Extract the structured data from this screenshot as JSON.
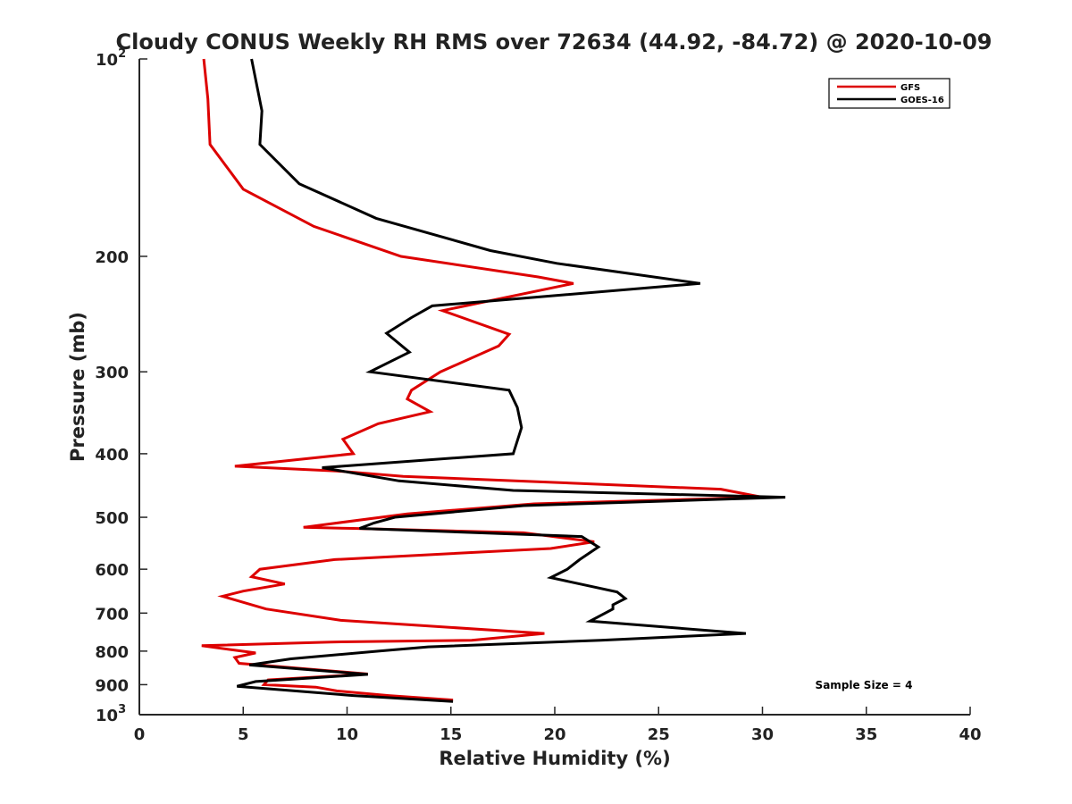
{
  "chart_data": {
    "type": "line",
    "title": "Cloudy CONUS Weekly RH RMS over 72634 (44.92, -84.72) @ 2020-10-09",
    "xlabel": "Relative Humidity (%)",
    "ylabel": "Pressure (mb)",
    "xlim": [
      0,
      40
    ],
    "ylim": [
      100,
      1000
    ],
    "yscale": "log",
    "y_reversed": true,
    "x_ticks": [
      {
        "value": 0,
        "label": "0"
      },
      {
        "value": 5,
        "label": "5"
      },
      {
        "value": 10,
        "label": "10"
      },
      {
        "value": 15,
        "label": "15"
      },
      {
        "value": 20,
        "label": "20"
      },
      {
        "value": 25,
        "label": "25"
      },
      {
        "value": 30,
        "label": "30"
      },
      {
        "value": 35,
        "label": "35"
      },
      {
        "value": 40,
        "label": "40"
      }
    ],
    "y_ticks": [
      {
        "value": 100,
        "label": "10",
        "sup": "2"
      },
      {
        "value": 200,
        "label": "200",
        "sup": ""
      },
      {
        "value": 300,
        "label": "300",
        "sup": ""
      },
      {
        "value": 400,
        "label": "400",
        "sup": ""
      },
      {
        "value": 500,
        "label": "500",
        "sup": ""
      },
      {
        "value": 600,
        "label": "600",
        "sup": ""
      },
      {
        "value": 700,
        "label": "700",
        "sup": ""
      },
      {
        "value": 800,
        "label": "800",
        "sup": ""
      },
      {
        "value": 900,
        "label": "900",
        "sup": ""
      },
      {
        "value": 1000,
        "label": "10",
        "sup": "3"
      }
    ],
    "grid": false,
    "legend_position": "top-right",
    "annotation": "Sample Size = 4",
    "series": [
      {
        "name": "GFS",
        "color": "#dd0000",
        "points": [
          [
            3.1,
            100
          ],
          [
            3.3,
            115
          ],
          [
            3.4,
            135
          ],
          [
            5.0,
            158
          ],
          [
            8.4,
            180
          ],
          [
            12.6,
            200
          ],
          [
            19.2,
            215
          ],
          [
            20.9,
            220
          ],
          [
            14.6,
            242
          ],
          [
            17.8,
            263
          ],
          [
            17.3,
            274
          ],
          [
            14.5,
            300
          ],
          [
            13.1,
            320
          ],
          [
            12.9,
            330
          ],
          [
            14.0,
            345
          ],
          [
            11.5,
            360
          ],
          [
            9.8,
            380
          ],
          [
            10.3,
            400
          ],
          [
            4.6,
            418
          ],
          [
            9.5,
            425
          ],
          [
            12.7,
            433
          ],
          [
            28.0,
            453
          ],
          [
            30.0,
            466
          ],
          [
            19.0,
            477
          ],
          [
            12.9,
            494
          ],
          [
            7.9,
            518
          ],
          [
            10.3,
            520
          ],
          [
            18.5,
            528
          ],
          [
            21.9,
            545
          ],
          [
            19.8,
            558
          ],
          [
            9.4,
            580
          ],
          [
            5.8,
            600
          ],
          [
            5.4,
            616
          ],
          [
            7.0,
            632
          ],
          [
            5.0,
            648
          ],
          [
            4.0,
            660
          ],
          [
            6.1,
            690
          ],
          [
            9.7,
            718
          ],
          [
            19.5,
            752
          ],
          [
            16.0,
            770
          ],
          [
            9.2,
            775
          ],
          [
            3.0,
            785
          ],
          [
            5.6,
            805
          ],
          [
            4.6,
            818
          ],
          [
            4.8,
            835
          ],
          [
            11.0,
            867
          ],
          [
            6.2,
            885
          ],
          [
            6.0,
            900
          ],
          [
            8.5,
            908
          ],
          [
            9.5,
            920
          ],
          [
            12.0,
            935
          ],
          [
            15.1,
            950
          ]
        ]
      },
      {
        "name": "GOES-16",
        "color": "#000000",
        "points": [
          [
            5.4,
            100
          ],
          [
            5.9,
            120
          ],
          [
            5.8,
            135
          ],
          [
            7.7,
            155
          ],
          [
            11.4,
            175
          ],
          [
            16.9,
            196
          ],
          [
            20.1,
            205
          ],
          [
            27.0,
            220
          ],
          [
            14.1,
            238
          ],
          [
            13.1,
            248
          ],
          [
            11.9,
            262
          ],
          [
            13.0,
            280
          ],
          [
            11.1,
            300
          ],
          [
            17.8,
            320
          ],
          [
            18.2,
            340
          ],
          [
            18.4,
            365
          ],
          [
            18.0,
            400
          ],
          [
            8.8,
            420
          ],
          [
            12.5,
            440
          ],
          [
            18.0,
            455
          ],
          [
            31.1,
            466
          ],
          [
            27.5,
            470
          ],
          [
            18.5,
            480
          ],
          [
            12.3,
            500
          ],
          [
            11.3,
            510
          ],
          [
            10.6,
            520
          ],
          [
            21.3,
            535
          ],
          [
            22.1,
            555
          ],
          [
            21.2,
            580
          ],
          [
            20.6,
            600
          ],
          [
            19.8,
            618
          ],
          [
            23.0,
            650
          ],
          [
            23.4,
            665
          ],
          [
            22.8,
            680
          ],
          [
            22.8,
            690
          ],
          [
            21.7,
            720
          ],
          [
            29.2,
            752
          ],
          [
            22.2,
            770
          ],
          [
            13.9,
            788
          ],
          [
            11.5,
            800
          ],
          [
            7.3,
            822
          ],
          [
            5.3,
            840
          ],
          [
            11.0,
            868
          ],
          [
            5.6,
            890
          ],
          [
            4.7,
            905
          ],
          [
            10.3,
            935
          ],
          [
            15.1,
            955
          ]
        ]
      }
    ]
  }
}
